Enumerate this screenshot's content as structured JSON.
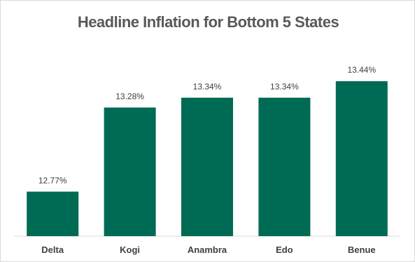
{
  "chart_data": {
    "type": "bar",
    "title": "Headline Inflation for Bottom 5 States",
    "xlabel": "",
    "ylabel": "",
    "categories": [
      "Delta",
      "Kogi",
      "Anambra",
      "Edo",
      "Benue"
    ],
    "values": [
      12.77,
      13.28,
      13.34,
      13.34,
      13.44
    ],
    "data_labels": [
      "12.77%",
      "13.28%",
      "13.34%",
      "13.34%",
      "13.44%"
    ],
    "unit": "%",
    "ylim": [
      12.5,
      13.5
    ],
    "grid": false,
    "legend": "none",
    "bar_color": "#006B54",
    "axis_color": "#d9d9d9"
  }
}
